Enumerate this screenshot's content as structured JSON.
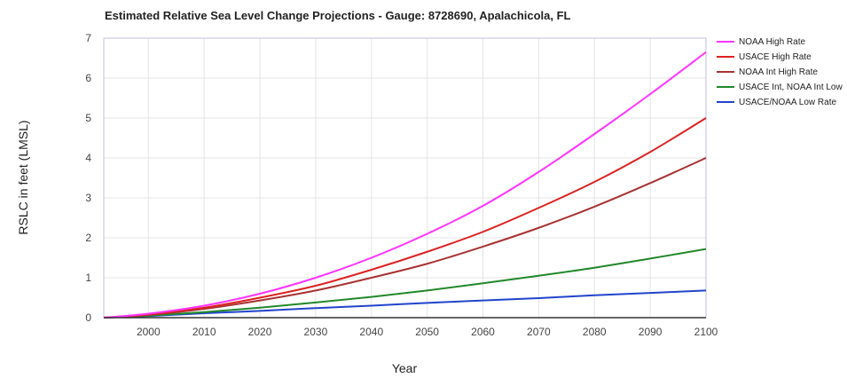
{
  "chart_data": {
    "type": "line",
    "title": "Estimated Relative Sea Level Change Projections - Gauge: 8728690, Apalachicola, FL",
    "xlabel": "Year",
    "ylabel": "RSLC in feet (LMSL)",
    "xlim": [
      1992,
      2100
    ],
    "ylim": [
      0,
      7
    ],
    "xticks": [
      "2000",
      "2010",
      "2020",
      "2030",
      "2040",
      "2050",
      "2060",
      "2070",
      "2080",
      "2090",
      "2100"
    ],
    "yticks": [
      "0",
      "1",
      "2",
      "3",
      "4",
      "5",
      "6",
      "7"
    ],
    "grid": true,
    "legend_position": "right",
    "x": [
      1992,
      2000,
      2010,
      2020,
      2030,
      2040,
      2050,
      2060,
      2070,
      2080,
      2090,
      2100
    ],
    "series": [
      {
        "name": "NOAA High Rate",
        "color": "#ff33ff",
        "values": [
          0,
          0.1,
          0.3,
          0.6,
          1.0,
          1.5,
          2.1,
          2.8,
          3.65,
          4.6,
          5.6,
          6.65
        ]
      },
      {
        "name": "USACE High Rate",
        "color": "#dd2222",
        "values": [
          0,
          0.08,
          0.25,
          0.5,
          0.8,
          1.2,
          1.65,
          2.15,
          2.75,
          3.4,
          4.15,
          5.0
        ]
      },
      {
        "name": "NOAA Int High Rate",
        "color": "#a83232",
        "values": [
          0,
          0.07,
          0.22,
          0.43,
          0.68,
          1.0,
          1.35,
          1.78,
          2.25,
          2.78,
          3.37,
          4.0
        ]
      },
      {
        "name": "USACE Int, NOAA Int Low",
        "color": "#22882a",
        "values": [
          0,
          0.05,
          0.14,
          0.25,
          0.38,
          0.52,
          0.68,
          0.86,
          1.05,
          1.25,
          1.48,
          1.72
        ]
      },
      {
        "name": "USACE/NOAA Low Rate",
        "color": "#2244cc",
        "values": [
          0,
          0.04,
          0.11,
          0.17,
          0.24,
          0.3,
          0.37,
          0.43,
          0.49,
          0.56,
          0.62,
          0.68
        ]
      }
    ]
  }
}
